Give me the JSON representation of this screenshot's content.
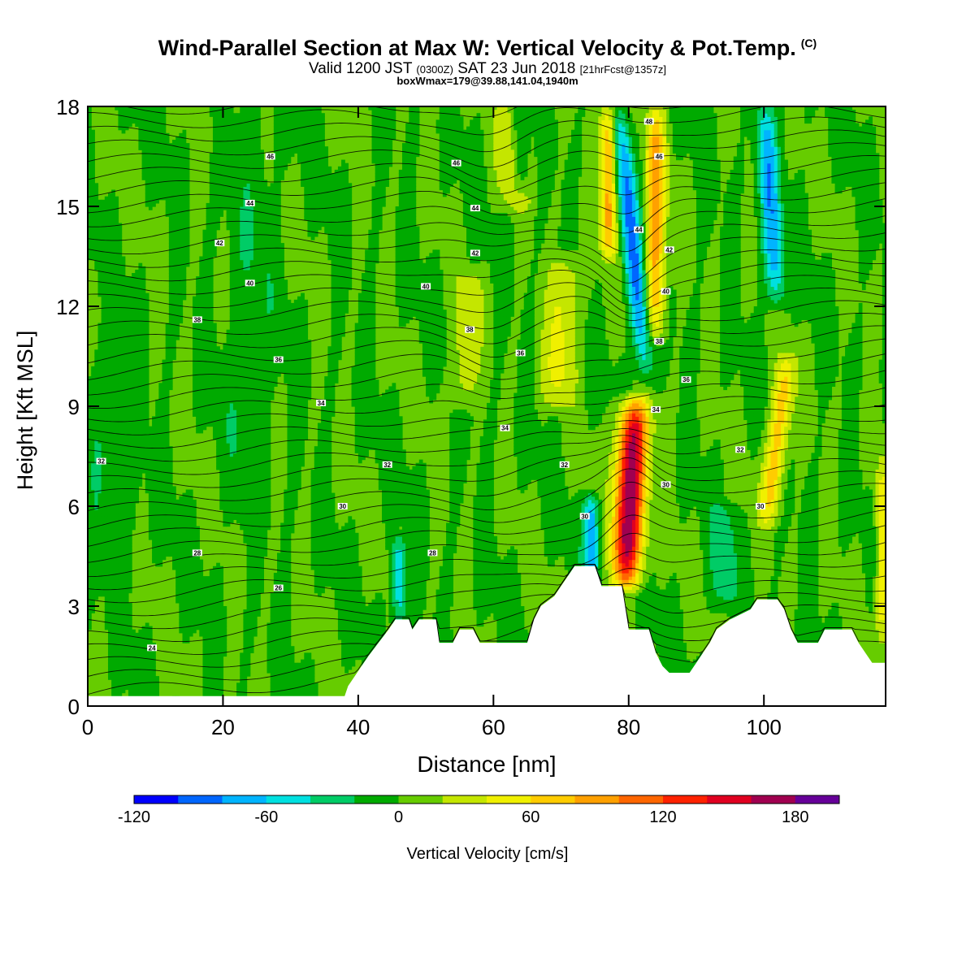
{
  "header": {
    "title": "Wind-Parallel Section at Max W: Vertical Velocity & Pot.Temp.",
    "copyright": "(C)",
    "valid_prefix": "Valid 1200 JST",
    "valid_utc": "(0300Z)",
    "valid_date": "SAT 23 Jun 2018",
    "forecast": "[21hrFcst@1357z]",
    "box_info": "boxWmax=179@39.88,141.04,1940m"
  },
  "chart_data": {
    "type": "heatmap",
    "xlabel": "Distance [nm]",
    "ylabel": "Height [Kft MSL]",
    "xlim": [
      0,
      118
    ],
    "ylim": [
      0,
      18
    ],
    "x_ticks": [
      "0",
      "20",
      "40",
      "60",
      "80",
      "100"
    ],
    "x_tick_values": [
      0,
      20,
      40,
      60,
      80,
      100
    ],
    "y_ticks": [
      "0",
      "3",
      "6",
      "9",
      "12",
      "15",
      "18"
    ],
    "y_tick_values": [
      0,
      3,
      6,
      9,
      12,
      15,
      18
    ],
    "colorbar": {
      "label": "Vertical Velocity [cm/s]",
      "min": -120,
      "max": 200,
      "step": 20,
      "tick_labels": [
        "-120",
        "-60",
        "0",
        "60",
        "120",
        "180"
      ],
      "tick_values": [
        -120,
        -60,
        0,
        60,
        120,
        180
      ],
      "colors": [
        "#0000ff",
        "#0066ff",
        "#00b4ff",
        "#00e0e0",
        "#00cc66",
        "#00aa00",
        "#66cc00",
        "#c4e600",
        "#f0f000",
        "#ffcc00",
        "#ffa000",
        "#ff6600",
        "#ff2200",
        "#e00020",
        "#a00050",
        "#660099"
      ]
    },
    "terrain": [
      [
        0,
        0.3
      ],
      [
        38,
        0.3
      ],
      [
        38.5,
        0.6
      ],
      [
        39.5,
        0.9
      ],
      [
        40.5,
        1.2
      ],
      [
        41.5,
        1.5
      ],
      [
        43,
        1.9
      ],
      [
        44.5,
        2.3
      ],
      [
        45.5,
        2.6
      ],
      [
        47.5,
        2.6
      ],
      [
        48,
        2.3
      ],
      [
        49,
        2.6
      ],
      [
        51.5,
        2.6
      ],
      [
        52,
        1.9
      ],
      [
        54,
        1.9
      ],
      [
        55,
        2.3
      ],
      [
        57,
        2.3
      ],
      [
        58,
        1.9
      ],
      [
        65,
        1.9
      ],
      [
        66,
        2.6
      ],
      [
        67,
        3.0
      ],
      [
        69,
        3.3
      ],
      [
        70,
        3.6
      ],
      [
        71,
        3.9
      ],
      [
        72,
        4.2
      ],
      [
        75,
        4.2
      ],
      [
        76,
        3.6
      ],
      [
        79,
        3.6
      ],
      [
        80,
        2.3
      ],
      [
        83,
        2.3
      ],
      [
        84,
        1.6
      ],
      [
        85,
        1.2
      ],
      [
        86,
        1.0
      ],
      [
        89,
        1.0
      ],
      [
        90,
        1.3
      ],
      [
        91,
        1.6
      ],
      [
        92,
        1.9
      ],
      [
        93,
        2.3
      ],
      [
        95,
        2.6
      ],
      [
        98,
        2.9
      ],
      [
        99,
        3.2
      ],
      [
        102,
        3.2
      ],
      [
        103,
        2.9
      ],
      [
        104,
        2.3
      ],
      [
        105,
        1.9
      ],
      [
        108,
        1.9
      ],
      [
        109,
        2.3
      ],
      [
        113,
        2.3
      ],
      [
        114,
        1.9
      ],
      [
        115,
        1.6
      ],
      [
        116,
        1.3
      ],
      [
        118,
        1.3
      ]
    ],
    "updrafts": [
      {
        "x": 80.2,
        "z0": 3.6,
        "z1": 9.2,
        "tilt": 0.25,
        "width": 2.2,
        "peak": 179
      },
      {
        "x": 84,
        "z0": 11.0,
        "z1": 18,
        "tilt": 0.0,
        "width": 1.4,
        "peak": 90
      },
      {
        "x": 77,
        "z0": 13.5,
        "z1": 18,
        "tilt": 0.0,
        "width": 1.2,
        "peak": 90
      },
      {
        "x": 102,
        "z0": 5.5,
        "z1": 10.5,
        "tilt": 0.6,
        "width": 1.5,
        "peak": 75
      },
      {
        "x": 70,
        "z0": 9.0,
        "z1": 13.5,
        "tilt": 0.3,
        "width": 2.5,
        "peak": 45
      },
      {
        "x": 117.5,
        "z0": 2.0,
        "z1": 7.5,
        "tilt": 0.0,
        "width": 1.0,
        "peak": 55
      },
      {
        "x": 63,
        "z0": 15.0,
        "z1": 18,
        "tilt": 0.0,
        "width": 2.5,
        "peak": 40
      },
      {
        "x": 56,
        "z0": 9.0,
        "z1": 13.0,
        "tilt": 0.3,
        "width": 2.0,
        "peak": 35
      }
    ],
    "downdrafts": [
      {
        "x": 80.5,
        "z0": 9.8,
        "z1": 18,
        "tilt": -0.5,
        "width": 1.4,
        "peak": -85
      },
      {
        "x": 74.5,
        "z0": 3.8,
        "z1": 6.2,
        "tilt": 0.0,
        "width": 1.2,
        "peak": -75
      },
      {
        "x": 101,
        "z0": 12.0,
        "z1": 18,
        "tilt": -0.3,
        "width": 1.5,
        "peak": -75
      },
      {
        "x": 64,
        "z0": 15.5,
        "z1": 18,
        "tilt": 0.0,
        "width": 1.4,
        "peak": -50
      },
      {
        "x": 46,
        "z0": 2.5,
        "z1": 5.0,
        "tilt": 0.0,
        "width": 1.0,
        "peak": -55
      },
      {
        "x": 94,
        "z0": 3.0,
        "z1": 6.0,
        "tilt": 0.0,
        "width": 2.0,
        "peak": -30
      },
      {
        "x": 24,
        "z0": 5.0,
        "z1": 18,
        "tilt": 0.1,
        "width": 3.5,
        "peak": -15
      },
      {
        "x": 3,
        "z0": 3.5,
        "z1": 11.5,
        "tilt": 0.0,
        "width": 4.0,
        "peak": -15
      }
    ],
    "theta_labels": [
      {
        "text": "24",
        "x": 9.5,
        "z": 1.75
      },
      {
        "text": "26",
        "x": 28.2,
        "z": 3.55
      },
      {
        "text": "28",
        "x": 16.2,
        "z": 4.6
      },
      {
        "text": "28",
        "x": 51,
        "z": 4.6
      },
      {
        "text": "30",
        "x": 37.7,
        "z": 6.0
      },
      {
        "text": "30",
        "x": 73.5,
        "z": 5.7
      },
      {
        "text": "30",
        "x": 99.5,
        "z": 6.0
      },
      {
        "text": "30",
        "x": 85.5,
        "z": 6.65
      },
      {
        "text": "32",
        "x": 2.0,
        "z": 7.35
      },
      {
        "text": "32",
        "x": 44.3,
        "z": 7.25
      },
      {
        "text": "32",
        "x": 70.5,
        "z": 7.25
      },
      {
        "text": "32",
        "x": 96.5,
        "z": 7.7
      },
      {
        "text": "34",
        "x": 34.5,
        "z": 9.1
      },
      {
        "text": "34",
        "x": 61.7,
        "z": 8.35
      },
      {
        "text": "34",
        "x": 84,
        "z": 8.9
      },
      {
        "text": "36",
        "x": 28.2,
        "z": 10.4
      },
      {
        "text": "36",
        "x": 64,
        "z": 10.6
      },
      {
        "text": "36",
        "x": 88.5,
        "z": 9.8
      },
      {
        "text": "38",
        "x": 16.2,
        "z": 11.6
      },
      {
        "text": "38",
        "x": 56.5,
        "z": 11.3
      },
      {
        "text": "38",
        "x": 84.5,
        "z": 10.95
      },
      {
        "text": "40",
        "x": 24,
        "z": 12.7
      },
      {
        "text": "40",
        "x": 50,
        "z": 12.6
      },
      {
        "text": "40",
        "x": 85.5,
        "z": 12.45
      },
      {
        "text": "42",
        "x": 19.5,
        "z": 13.9
      },
      {
        "text": "42",
        "x": 57.3,
        "z": 13.6
      },
      {
        "text": "42",
        "x": 86,
        "z": 13.7
      },
      {
        "text": "44",
        "x": 24,
        "z": 15.1
      },
      {
        "text": "44",
        "x": 57.3,
        "z": 14.95
      },
      {
        "text": "44",
        "x": 81.5,
        "z": 14.3
      },
      {
        "text": "46",
        "x": 27,
        "z": 16.5
      },
      {
        "text": "46",
        "x": 54.5,
        "z": 16.3
      },
      {
        "text": "46",
        "x": 84.5,
        "z": 16.5
      },
      {
        "text": "48",
        "x": 83,
        "z": 17.55
      }
    ]
  }
}
